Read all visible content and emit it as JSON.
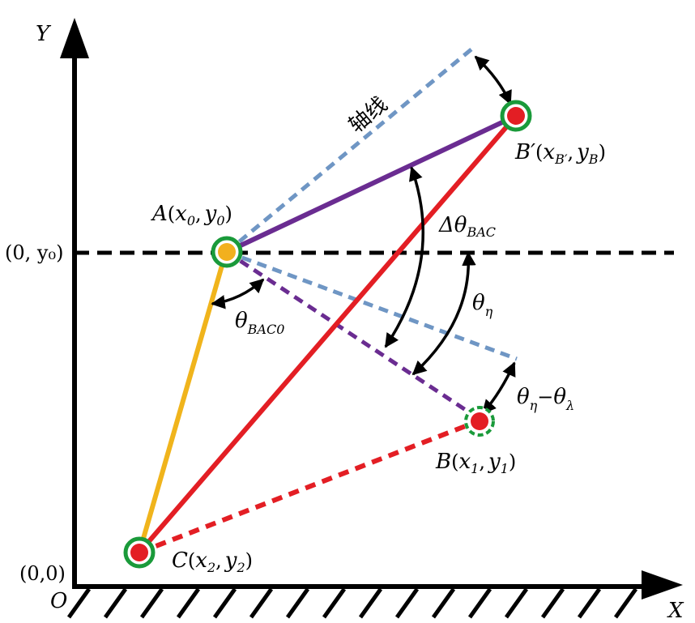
{
  "axes": {
    "y_label": "Y",
    "x_label": "X",
    "origin_letter": "O",
    "origin_coord": "(0,0)",
    "y0_coord": "(0, y₀)"
  },
  "points": {
    "A": {
      "name": "A",
      "x": "x",
      "xsub": "0",
      "sep": ",",
      "y": "y",
      "ysub": "0"
    },
    "B_prime": {
      "name": "B′",
      "x": "x",
      "xsub": "B′",
      "sep": ",",
      "y": "y",
      "ysub": "B"
    },
    "B": {
      "name": "B",
      "x": "x",
      "xsub": "1",
      "sep": ",",
      "y": "y",
      "ysub": "1"
    },
    "C": {
      "name": "C",
      "x": "x",
      "xsub": "2",
      "sep": ",",
      "y": "y",
      "ysub": "2"
    }
  },
  "angles": {
    "delta_theta": {
      "base": "Δθ",
      "sub": "BAC"
    },
    "theta_bac0": {
      "base": "θ",
      "sub": "BAC0"
    },
    "theta_eta": {
      "base": "θ",
      "sub": "η"
    },
    "theta_diff": {
      "base1": "θ",
      "sub1": "η",
      "minus": "−",
      "base2": "θ",
      "sub2": "λ"
    }
  },
  "axis_label_cn": "轴线",
  "colors": {
    "axes": "#000000",
    "dashed_blue": "#6f96c4",
    "purple": "#6a2c91",
    "red": "#e31e24",
    "yellow": "#f0b41c",
    "ring_green": "#1a9a3a",
    "joint_yellow": "#f2b01e",
    "joint_red": "#e31e24"
  }
}
